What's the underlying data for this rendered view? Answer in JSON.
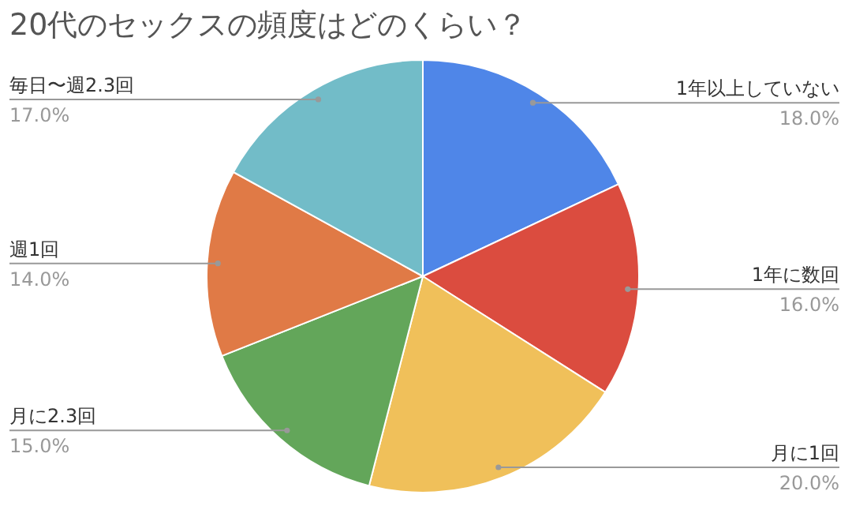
{
  "chart_data": {
    "type": "pie",
    "title": "20代のセックスの頻度はどのくらい？",
    "categories": [
      "1年以上していない",
      "1年に数回",
      "月に1回",
      "月に2.3回",
      "週1回",
      "毎日〜週2.3回"
    ],
    "values": [
      18,
      16,
      20,
      15,
      14,
      17
    ],
    "value_labels": [
      "18.0%",
      "16.0%",
      "20.0%",
      "15.0%",
      "14.0%",
      "17.0%"
    ],
    "colors": [
      "#4f86e8",
      "#db4c3f",
      "#f0c05a",
      "#63a65a",
      "#e07a46",
      "#72bcc8"
    ],
    "legend": false
  }
}
